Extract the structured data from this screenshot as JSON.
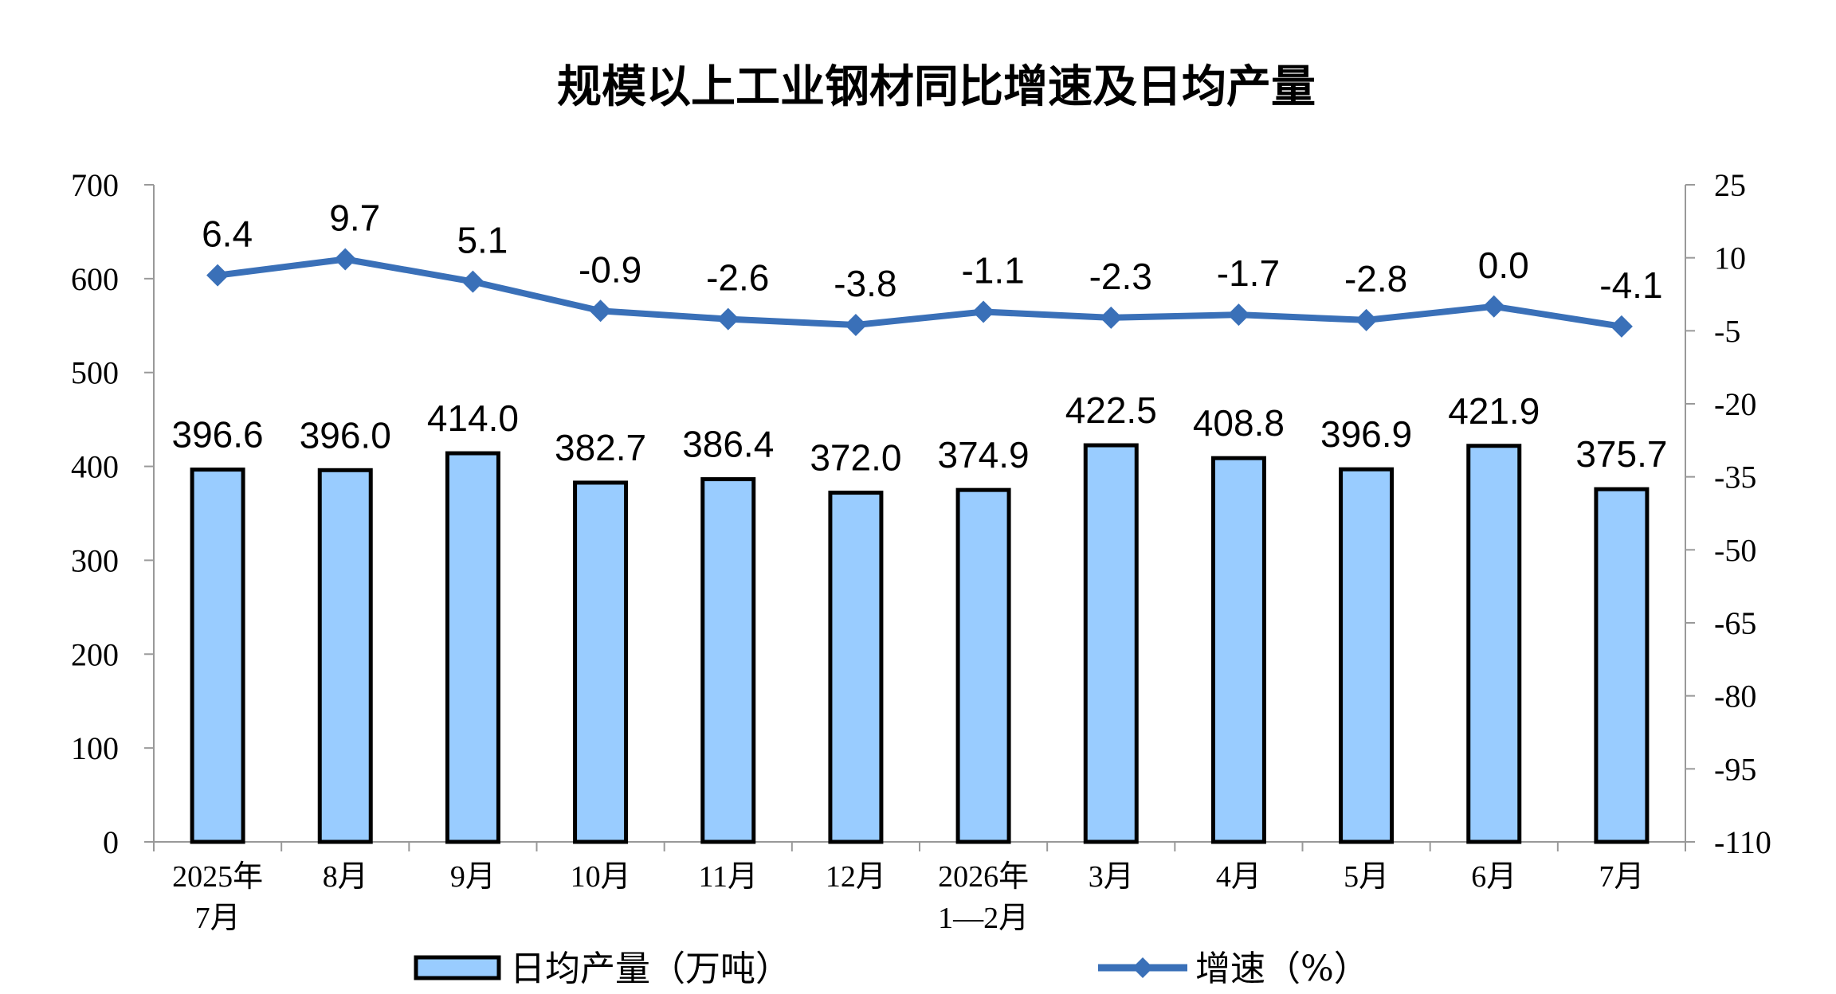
{
  "chart_data": {
    "type": "bar",
    "title": "规模以上工业钢材同比增速及日均产量",
    "categories": [
      "2025年\n7月",
      "8月",
      "9月",
      "10月",
      "11月",
      "12月",
      "2026年\n1—2月",
      "3月",
      "4月",
      "5月",
      "6月",
      "7月"
    ],
    "series": [
      {
        "name": "日均产量（万吨）",
        "type": "bar",
        "axis": "left",
        "values": [
          396.6,
          396.0,
          414.0,
          382.7,
          386.4,
          372.0,
          374.9,
          422.5,
          408.8,
          396.9,
          421.9,
          375.7
        ],
        "labels": [
          "396.6",
          "396.0",
          "414.0",
          "382.7",
          "386.4",
          "372.0",
          "374.9",
          "422.5",
          "408.8",
          "396.9",
          "421.9",
          "375.7"
        ],
        "color": "#99ccff"
      },
      {
        "name": "增速（%）",
        "type": "line",
        "axis": "right",
        "values": [
          6.4,
          9.7,
          5.1,
          -0.9,
          -2.6,
          -3.8,
          -1.1,
          -2.3,
          -1.7,
          -2.8,
          0.0,
          -4.1
        ],
        "labels": [
          "6.4",
          "9.7",
          "5.1",
          "-0.9",
          "-2.6",
          "-3.8",
          "-1.1",
          "-2.3",
          "-1.7",
          "-2.8",
          "0.0",
          "-4.1"
        ],
        "color": "#3a70b8"
      }
    ],
    "y_left": {
      "ylim": [
        0,
        700
      ],
      "ticks": [
        0,
        100,
        200,
        300,
        400,
        500,
        600,
        700
      ],
      "tick_labels": [
        "0",
        "100",
        "200",
        "300",
        "400",
        "500",
        "600",
        "700"
      ]
    },
    "y_right": {
      "ylim": [
        -110,
        25
      ],
      "ticks": [
        25,
        10,
        -5,
        -20,
        -35,
        -50,
        -65,
        -80,
        -95,
        -110
      ],
      "tick_labels": [
        "25",
        "10",
        "-5",
        "-20",
        "-35",
        "-50",
        "-65",
        "-80",
        "-95",
        "-110"
      ]
    },
    "grid": false,
    "legend": "bottom"
  }
}
